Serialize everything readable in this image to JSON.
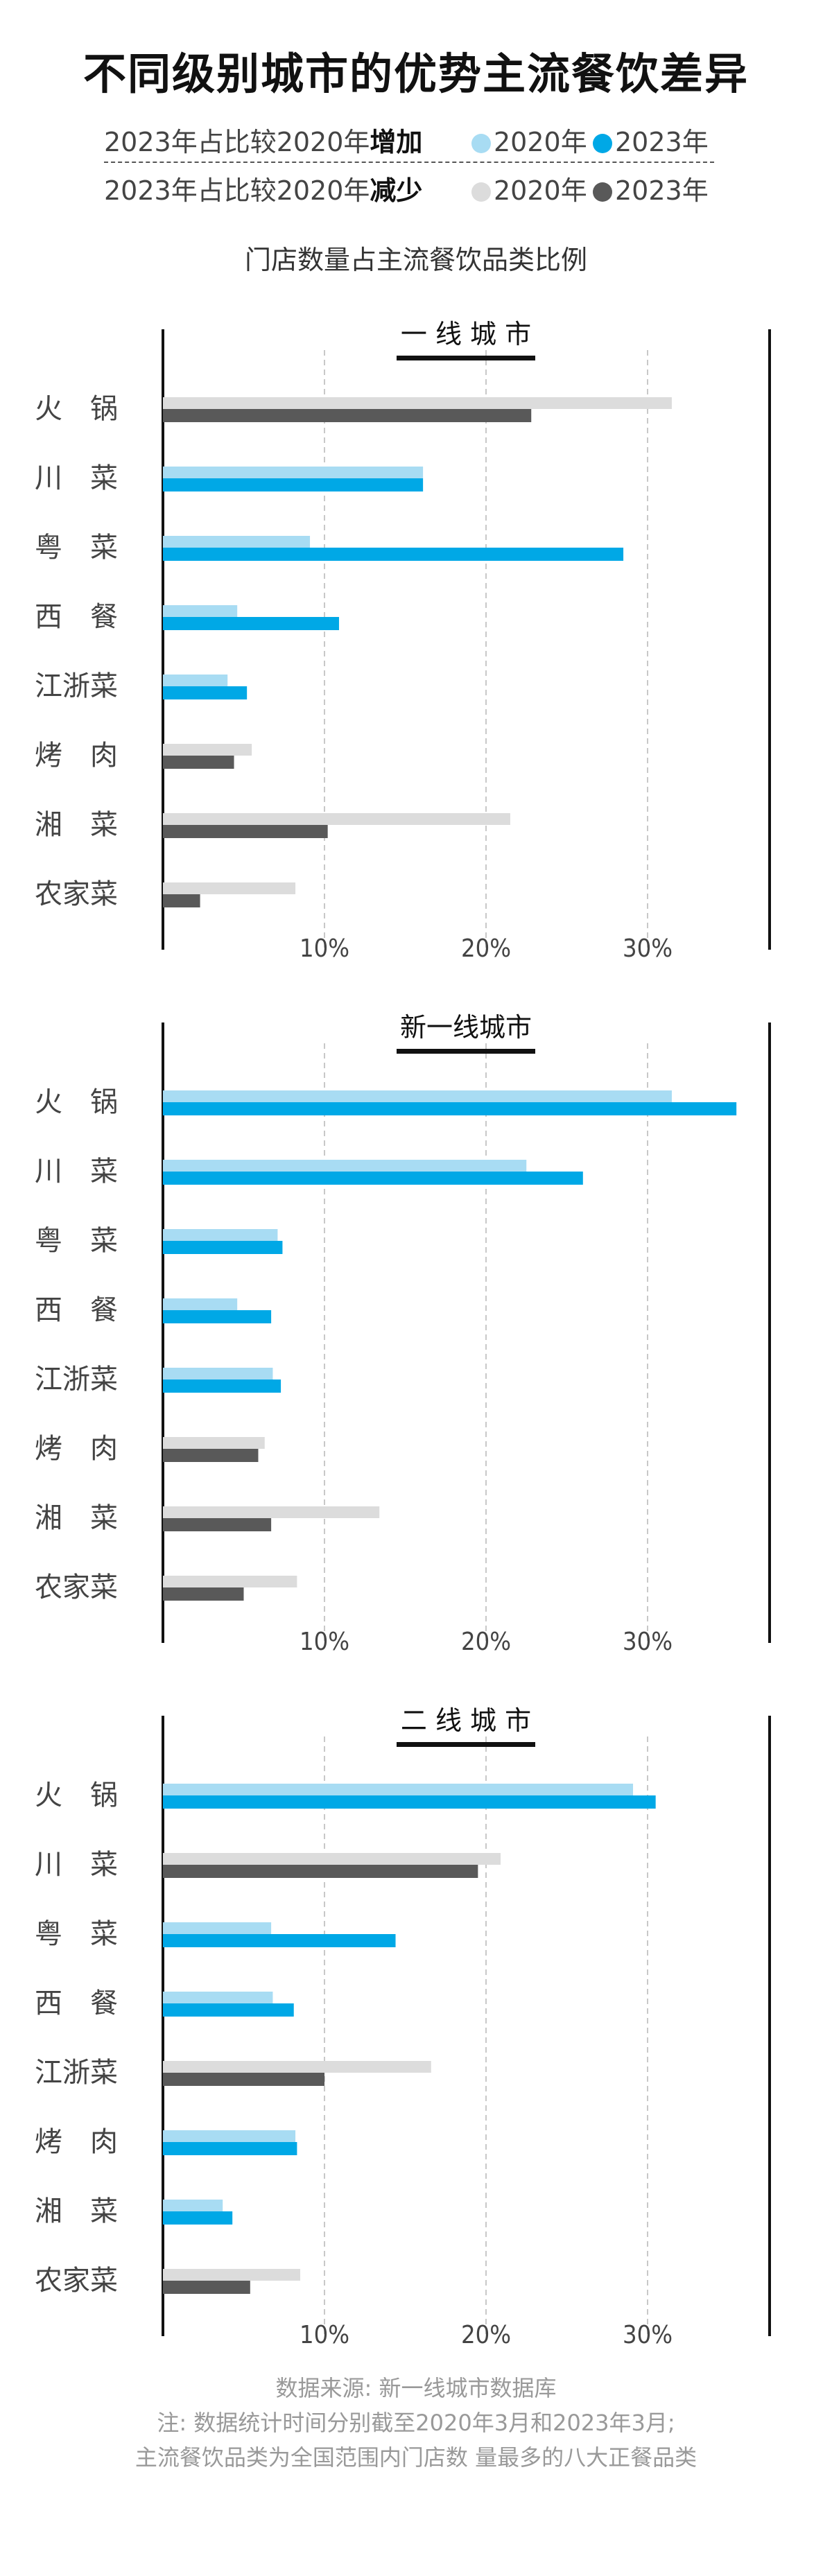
{
  "title": "不同级别城市的优势主流餐饮差异",
  "legend": {
    "increase_prefix": "2023年占比较2020年",
    "increase_word": "增加",
    "decrease_prefix": "2023年占比较2020年",
    "decrease_word": "减少",
    "label_2020": "2020年",
    "label_2023": "2023年",
    "colors": {
      "increase_2020": "#a8dcf3",
      "increase_2023": "#00a8e6",
      "decrease_2020": "#dcdcdc",
      "decrease_2023": "#595959"
    }
  },
  "subtitle": "门店数量占主流餐饮品类比例",
  "chart_data": [
    {
      "type": "bar",
      "title": "一 线 城 市",
      "categories": [
        "火　锅",
        "川　菜",
        "粤　菜",
        "西　餐",
        "江浙菜",
        "烤　肉",
        "湘　菜",
        "农家菜"
      ],
      "series": [
        {
          "name": "2020年",
          "values": [
            31.5,
            16.1,
            9.1,
            4.6,
            4.0,
            5.5,
            21.5,
            8.2
          ]
        },
        {
          "name": "2023年",
          "values": [
            22.8,
            16.1,
            28.5,
            10.9,
            5.2,
            4.4,
            10.2,
            2.3
          ]
        }
      ],
      "xticks": [
        "10%",
        "20%",
        "30%"
      ],
      "xlim": [
        0,
        37
      ],
      "grid": true
    },
    {
      "type": "bar",
      "title": "新一线城市",
      "categories": [
        "火　锅",
        "川　菜",
        "粤　菜",
        "西　餐",
        "江浙菜",
        "烤　肉",
        "湘　菜",
        "农家菜"
      ],
      "series": [
        {
          "name": "2020年",
          "values": [
            31.5,
            22.5,
            7.1,
            4.6,
            6.8,
            6.3,
            13.4,
            8.3
          ]
        },
        {
          "name": "2023年",
          "values": [
            35.5,
            26.0,
            7.4,
            6.7,
            7.3,
            5.9,
            6.7,
            5.0
          ]
        }
      ],
      "xticks": [
        "10%",
        "20%",
        "30%"
      ],
      "xlim": [
        0,
        37
      ],
      "grid": true
    },
    {
      "type": "bar",
      "title": "二 线 城 市",
      "categories": [
        "火　锅",
        "川　菜",
        "粤　菜",
        "西　餐",
        "江浙菜",
        "烤　肉",
        "湘　菜",
        "农家菜"
      ],
      "series": [
        {
          "name": "2020年",
          "values": [
            29.1,
            20.9,
            6.7,
            6.8,
            16.6,
            8.2,
            3.7,
            8.5
          ]
        },
        {
          "name": "2023年",
          "values": [
            30.5,
            19.5,
            14.4,
            8.1,
            10.0,
            8.3,
            4.3,
            5.4
          ]
        }
      ],
      "xticks": [
        "10%",
        "20%",
        "30%"
      ],
      "xlim": [
        0,
        37
      ],
      "grid": true
    }
  ],
  "footer": {
    "source": "数据来源: 新一线城市数据库",
    "note1": "注: 数据统计时间分别截至2020年3月和2023年3月;",
    "note2": "主流餐饮品类为全国范围内门店数 量最多的八大正餐品类"
  }
}
